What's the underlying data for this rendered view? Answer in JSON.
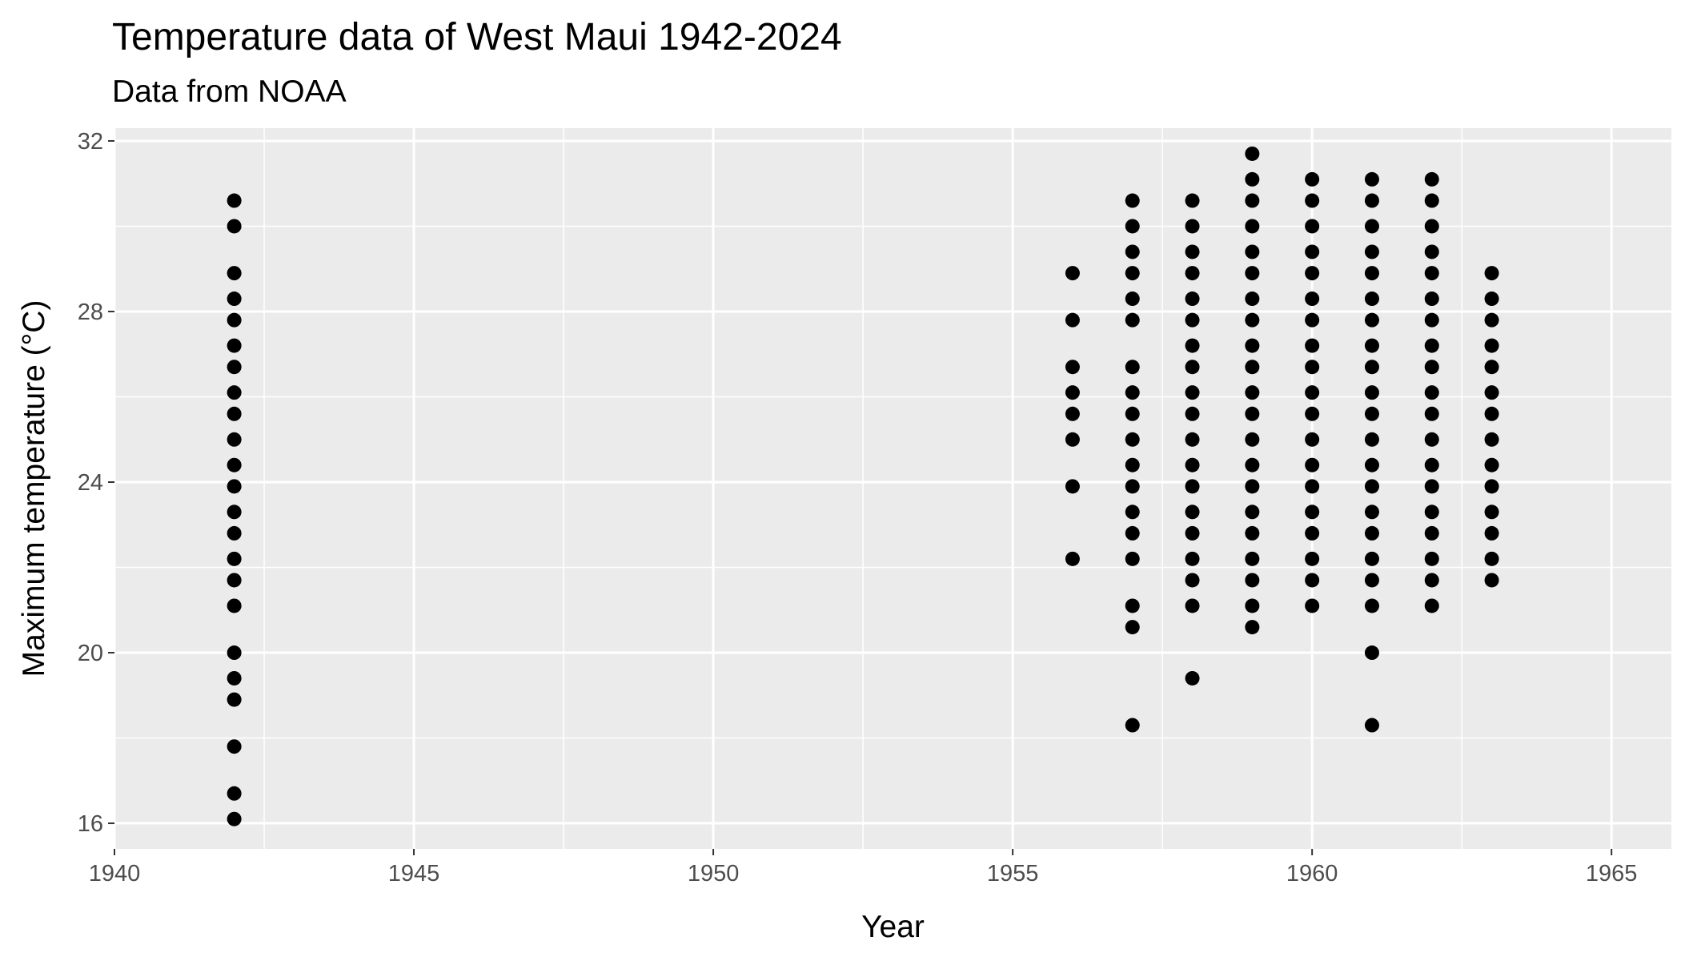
{
  "chart_data": {
    "type": "scatter",
    "title": "Temperature data of West Maui 1942-2024",
    "subtitle": "Data from NOAA",
    "xlabel": "Year",
    "ylabel": "Maximum temperature (°C)",
    "xlim": [
      1940,
      1966
    ],
    "ylim": [
      15.4,
      32.3
    ],
    "x_ticks": [
      1940,
      1945,
      1950,
      1955,
      1960,
      1965
    ],
    "y_ticks": [
      16,
      20,
      24,
      28,
      32
    ],
    "grid": true,
    "legend": "none",
    "colors": {
      "panel": "#ebebeb",
      "grid": "#ffffff",
      "point": "#000000",
      "tick_label": "#4d4d4d"
    },
    "series": [
      {
        "x": 1942,
        "y": [
          16.1,
          16.7,
          17.8,
          18.9,
          19.4,
          20.0,
          21.1,
          21.7,
          22.2,
          22.8,
          23.3,
          23.9,
          24.4,
          25.0,
          25.6,
          26.1,
          26.7,
          27.2,
          27.8,
          28.3,
          28.9,
          30.0,
          30.6
        ]
      },
      {
        "x": 1956,
        "y": [
          22.2,
          23.9,
          25.0,
          25.6,
          26.1,
          26.7,
          27.8,
          28.9
        ]
      },
      {
        "x": 1957,
        "y": [
          18.3,
          20.6,
          21.1,
          22.2,
          22.8,
          23.3,
          23.9,
          24.4,
          25.0,
          25.6,
          26.1,
          26.7,
          27.8,
          28.3,
          28.9,
          29.4,
          30.0,
          30.6
        ]
      },
      {
        "x": 1958,
        "y": [
          19.4,
          21.1,
          21.7,
          22.2,
          22.8,
          23.3,
          23.9,
          24.4,
          25.0,
          25.6,
          26.1,
          26.7,
          27.2,
          27.8,
          28.3,
          28.9,
          29.4,
          30.0,
          30.6
        ]
      },
      {
        "x": 1959,
        "y": [
          20.6,
          21.1,
          21.7,
          22.2,
          22.8,
          23.3,
          23.9,
          24.4,
          25.0,
          25.6,
          26.1,
          26.7,
          27.2,
          27.8,
          28.3,
          28.9,
          29.4,
          30.0,
          30.6,
          31.1,
          31.7
        ]
      },
      {
        "x": 1960,
        "y": [
          21.1,
          21.7,
          22.2,
          22.8,
          23.3,
          23.9,
          24.4,
          25.0,
          25.6,
          26.1,
          26.7,
          27.2,
          27.8,
          28.3,
          28.9,
          29.4,
          30.0,
          30.6,
          31.1
        ]
      },
      {
        "x": 1961,
        "y": [
          18.3,
          20.0,
          21.1,
          21.7,
          22.2,
          22.8,
          23.3,
          23.9,
          24.4,
          25.0,
          25.6,
          26.1,
          26.7,
          27.2,
          27.8,
          28.3,
          28.9,
          29.4,
          30.0,
          30.6,
          31.1
        ]
      },
      {
        "x": 1962,
        "y": [
          21.1,
          21.7,
          22.2,
          22.8,
          23.3,
          23.9,
          24.4,
          25.0,
          25.6,
          26.1,
          26.7,
          27.2,
          27.8,
          28.3,
          28.9,
          29.4,
          30.0,
          30.6,
          31.1
        ]
      },
      {
        "x": 1963,
        "y": [
          21.7,
          22.2,
          22.8,
          23.3,
          23.9,
          24.4,
          25.0,
          25.6,
          26.1,
          26.7,
          27.2,
          27.8,
          28.3,
          28.9
        ]
      }
    ]
  }
}
